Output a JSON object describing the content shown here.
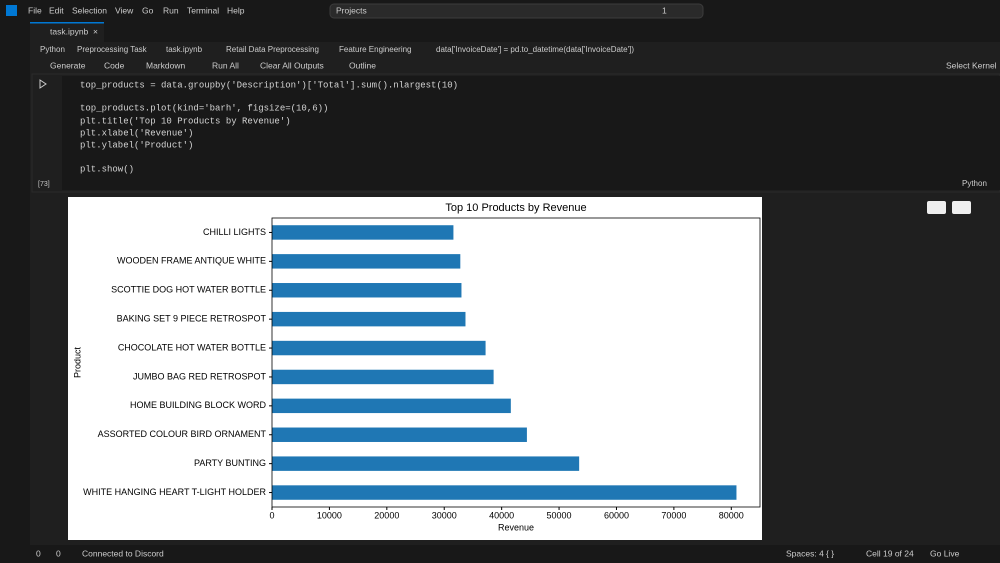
{
  "titlebar": {
    "menu": [
      "File",
      "Edit",
      "Selection",
      "View",
      "Go",
      "Run",
      "Terminal",
      "Help"
    ],
    "search": "Projects",
    "badge": "1"
  },
  "tab": {
    "title": "task.ipynb"
  },
  "breadcrumbs": [
    "Python",
    "Preprocessing Task",
    "task.ipynb",
    "Retail Data Preprocessing",
    "Feature Engineering",
    "data['InvoiceDate'] = pd.to_datetime(data['InvoiceDate'])"
  ],
  "toolbar": {
    "items": [
      "Generate",
      "Code",
      "Markdown",
      "Run All",
      "Clear All Outputs",
      "Outline"
    ],
    "kernel": "Select Kernel"
  },
  "cell": {
    "code": [
      "top_products = data.groupby('Description')['Total'].sum().nlargest(10)",
      "top_products.plot(kind='barh', figsize=(10,6))",
      "plt.title('Top 10 Products by Revenue')",
      "plt.xlabel('Revenue')",
      "plt.ylabel('Product')",
      "plt.show()"
    ],
    "execution": "[73]",
    "language": "Python"
  },
  "chart_data": {
    "type": "bar",
    "orientation": "horizontal",
    "title": "Top 10 Products by Revenue",
    "x_label": "Revenue",
    "y_label": "Product",
    "categories": [
      "CHILLI LIGHTS",
      "WOODEN FRAME ANTIQUE WHITE",
      "SCOTTIE DOG HOT WATER BOTTLE",
      "BAKING SET 9 PIECE RETROSPOT ",
      "CHOCOLATE HOT WATER BOTTLE",
      "JUMBO BAG RED RETROSPOT",
      "HOME BUILDING BLOCK WORD",
      "ASSORTED COLOUR BIRD ORNAMENT",
      "PARTY BUNTING",
      "WHITE HANGING HEART T-LIGHT HOLDER"
    ],
    "values": [
      31600,
      32800,
      33000,
      33700,
      37200,
      38600,
      41600,
      44400,
      53500,
      80900
    ],
    "color": "#1f77b4",
    "xlim": [
      0,
      85000
    ],
    "xticks": [
      0,
      10000,
      20000,
      30000,
      40000,
      50000,
      60000,
      70000,
      80000
    ]
  },
  "statusbar": {
    "errors": "0",
    "warnings": "0",
    "discord": "Connected to Discord",
    "spaces": "Spaces: 4",
    "braces": "{ }",
    "cell": "Cell 19 of 24",
    "live": "Go Live"
  }
}
